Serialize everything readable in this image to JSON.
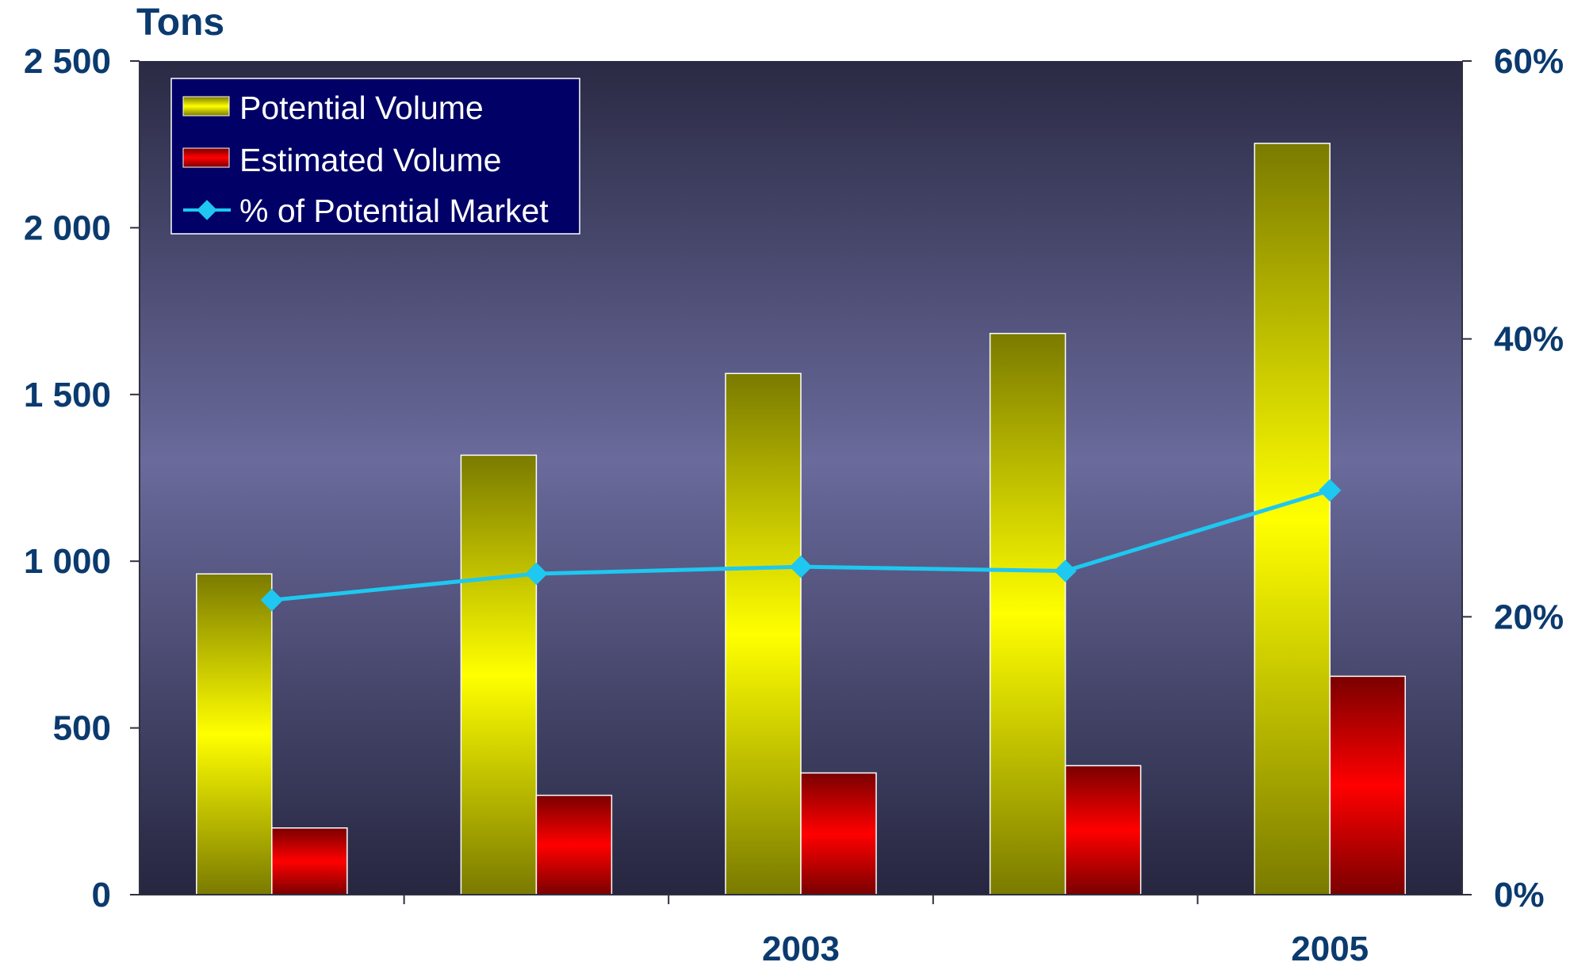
{
  "chart_data": {
    "type": "bar",
    "title": "",
    "y_unit_label": "Tons",
    "categories": [
      "",
      "",
      "2003",
      "",
      "2005"
    ],
    "series": [
      {
        "name": "Potential Volume",
        "type": "bar",
        "axis": "left",
        "values": [
          962,
          1318,
          1563,
          1683,
          2253
        ]
      },
      {
        "name": "Estimated Volume",
        "type": "bar",
        "axis": "left",
        "values": [
          200,
          298,
          365,
          387,
          655
        ]
      },
      {
        "name": "% of Potential Market",
        "type": "line",
        "axis": "right",
        "values": [
          21.2,
          23.1,
          23.6,
          23.3,
          29.1
        ]
      }
    ],
    "ylim_left": [
      0,
      2500
    ],
    "yticks_left": [
      {
        "value": 0,
        "label": "0"
      },
      {
        "value": 500,
        "label": "500"
      },
      {
        "value": 1000,
        "label": "1 000"
      },
      {
        "value": 1500,
        "label": "1 500"
      },
      {
        "value": 2000,
        "label": "2 000"
      },
      {
        "value": 2500,
        "label": "2 500"
      }
    ],
    "ylim_right": [
      0,
      60
    ],
    "yticks_right": [
      {
        "value": 0,
        "label": "0%"
      },
      {
        "value": 20,
        "label": "20%"
      },
      {
        "value": 40,
        "label": "40%"
      },
      {
        "value": 60,
        "label": "60%"
      }
    ],
    "legend_position": "top-left",
    "grid": false,
    "colors": {
      "potential": "#ffff00",
      "estimated": "#ff0000",
      "line": "#1ec8f0",
      "axis_text": "#0b3a6e",
      "legend_bg": "#000066"
    }
  }
}
